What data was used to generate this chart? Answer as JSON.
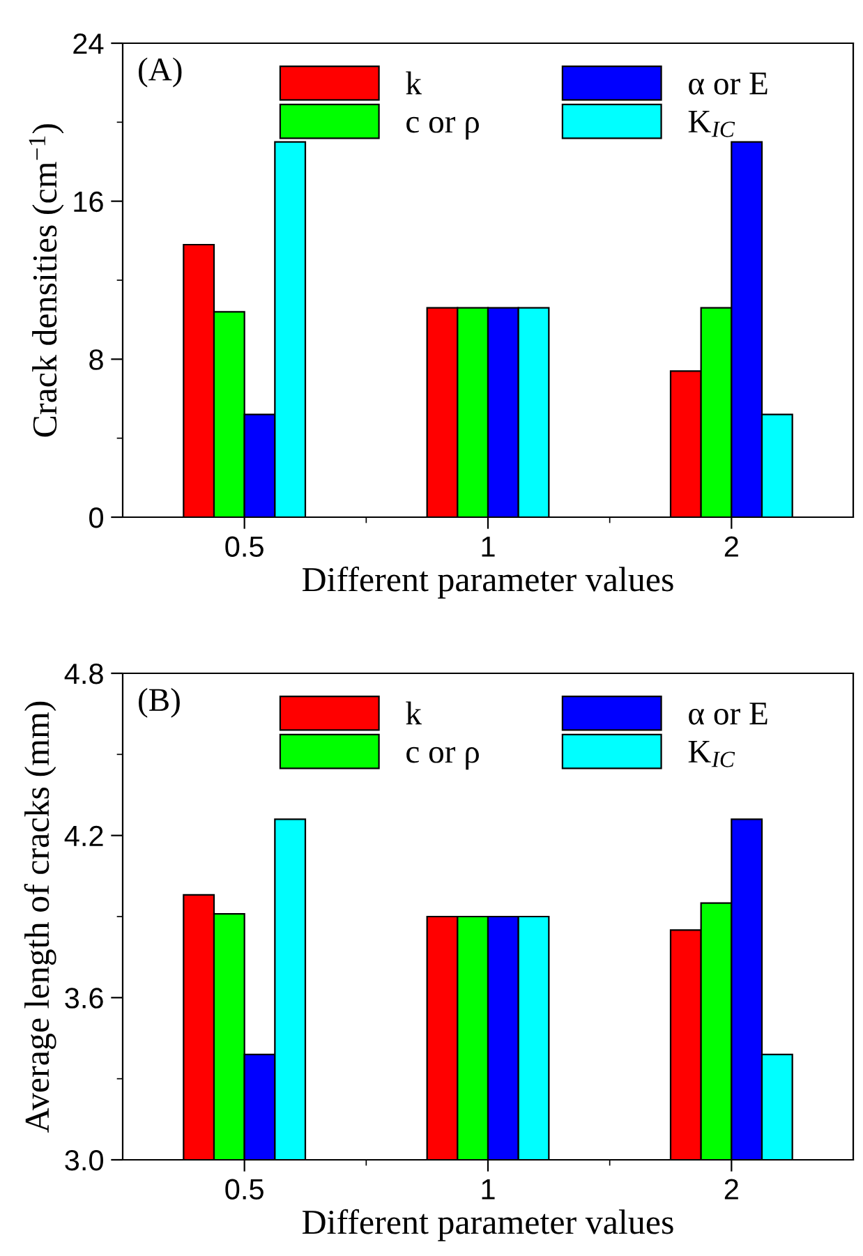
{
  "chart_data": [
    {
      "type": "bar",
      "xlabel": "Different parameter values",
      "ylabel": "Crack densities (cm$^{−1}$)",
      "categories": [
        "0.5",
        "1",
        "2"
      ],
      "ylim": [
        0,
        24
      ],
      "yticks": [
        0,
        8,
        16,
        24
      ],
      "legend": "top",
      "annotations": [
        "(A)"
      ],
      "series": [
        {
          "name": "k",
          "color": "#ff0000",
          "values": [
            13.8,
            10.6,
            7.4
          ]
        },
        {
          "name": "c or ρ",
          "color": "#00ff00",
          "values": [
            10.4,
            10.6,
            10.6
          ]
        },
        {
          "name": "α or E",
          "color": "#0000ff",
          "values": [
            5.2,
            10.6,
            19.0
          ]
        },
        {
          "name": "K$_{IC}$",
          "color": "#00ffff",
          "values": [
            19.0,
            10.6,
            5.2
          ]
        }
      ]
    },
    {
      "type": "bar",
      "xlabel": "Different parameter values",
      "ylabel": "Average length of cracks (mm)",
      "categories": [
        "0.5",
        "1",
        "2"
      ],
      "ylim": [
        3.0,
        4.8
      ],
      "yticks": [
        {
          "value": 3.0,
          "label": "3.0"
        },
        3.6,
        4.2,
        4.8
      ],
      "legend": "top",
      "annotations": [
        "(B)"
      ],
      "series": [
        {
          "name": "k",
          "color": "#ff0000",
          "values": [
            3.98,
            3.9,
            3.85
          ]
        },
        {
          "name": "c or ρ",
          "color": "#00ff00",
          "values": [
            3.91,
            3.9,
            3.95
          ]
        },
        {
          "name": "α or E",
          "color": "#0000ff",
          "values": [
            3.39,
            3.9,
            4.26
          ]
        },
        {
          "name": "K$_{IC}$",
          "color": "#00ffff",
          "values": [
            4.26,
            3.9,
            3.39
          ]
        }
      ]
    }
  ]
}
